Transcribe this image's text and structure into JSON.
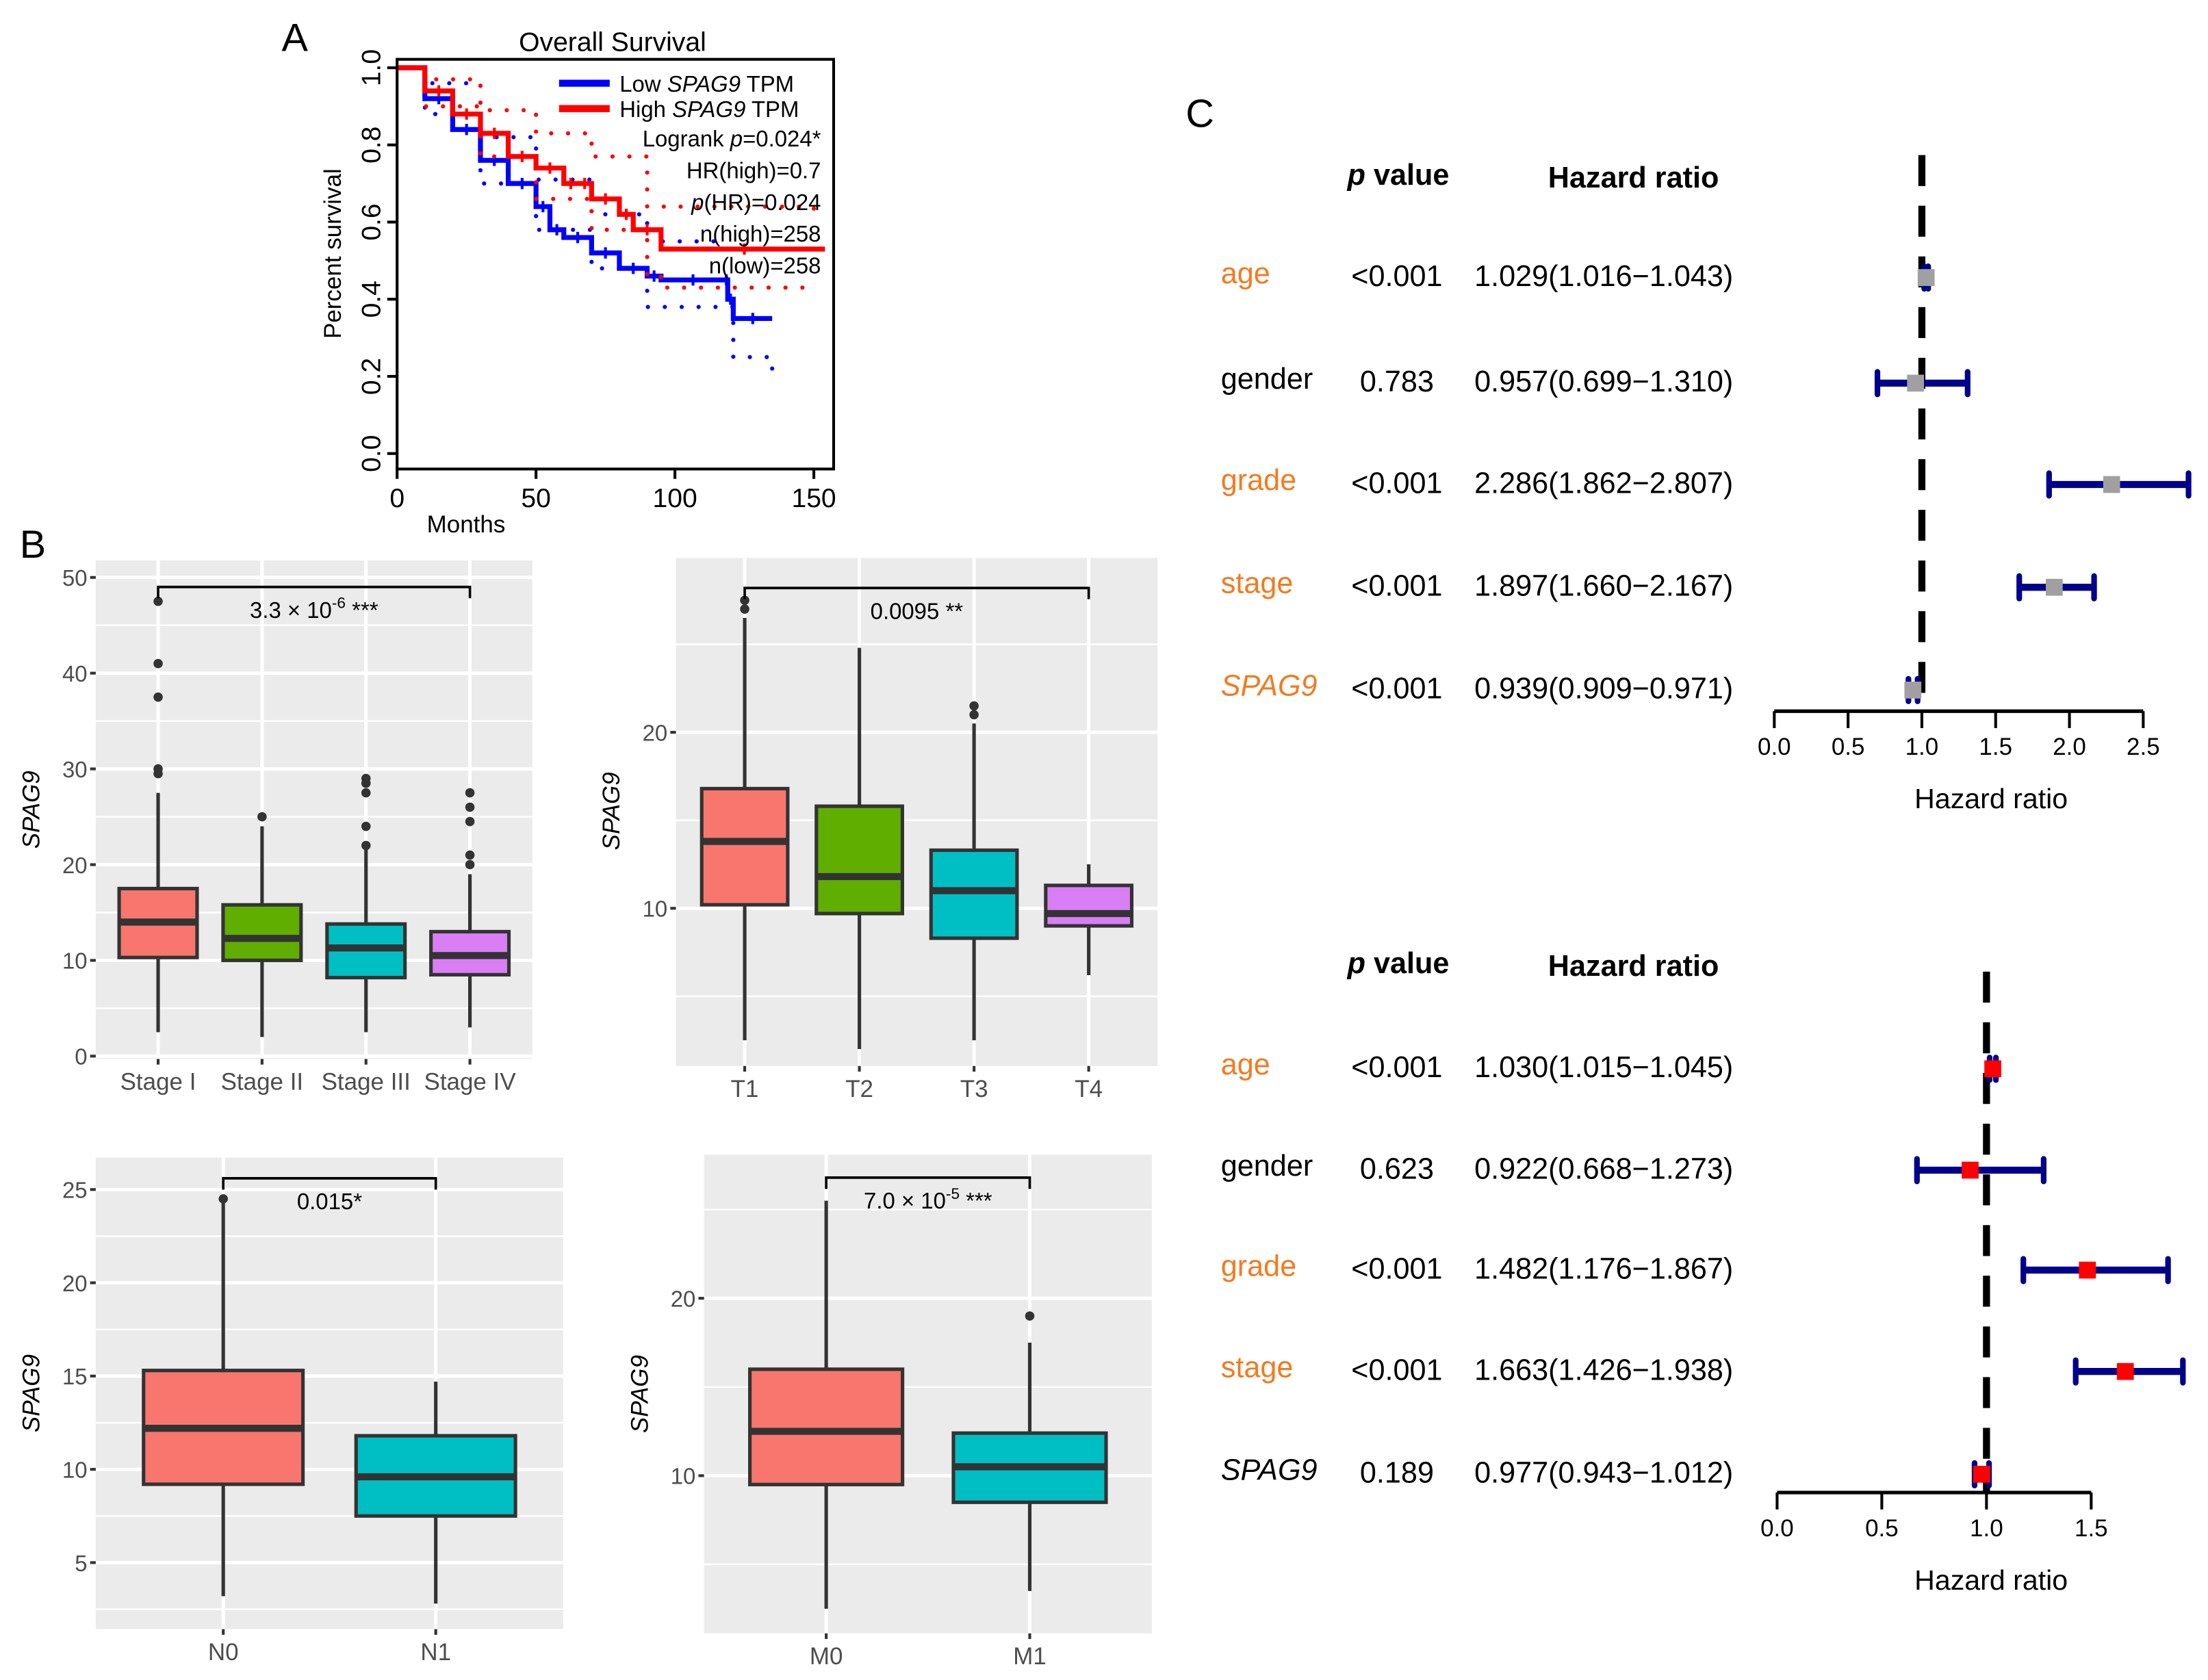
{
  "panel_labels": {
    "a": "A",
    "b": "B",
    "c": "C"
  },
  "chart_data": [
    {
      "id": "A",
      "type": "line",
      "title": "Overall Survival",
      "xlabel": "Months",
      "ylabel": "Percent survival",
      "xlim": [
        0,
        150
      ],
      "ylim": [
        0,
        1
      ],
      "xticks": [
        0,
        50,
        100,
        150
      ],
      "yticks": [
        "0.0",
        "0.2",
        "0.4",
        "0.6",
        "0.8",
        "1.0"
      ],
      "legend": {
        "placement": "top-right",
        "entries": [
          {
            "prefix": "Low ",
            "gene": "SPAG9",
            "suffix": " TPM",
            "color": "#0000ff"
          },
          {
            "prefix": "High ",
            "gene": "SPAG9",
            "suffix": " TPM",
            "color": "#ff0000"
          }
        ],
        "stats": [
          {
            "pre": "Logrank ",
            "ital": "p",
            "post": "=0.024*"
          },
          {
            "pre": "HR(high)=0.7",
            "ital": "",
            "post": ""
          },
          {
            "pre": "",
            "ital": "p",
            "post": "(HR)=0.024"
          },
          {
            "pre": "n(high)=258",
            "ital": "",
            "post": ""
          },
          {
            "pre": "n(low)=258",
            "ital": "",
            "post": ""
          }
        ]
      },
      "series": [
        {
          "name": "Low SPAG9 TPM",
          "color": "#0000ff",
          "x": [
            0,
            10,
            20,
            30,
            40,
            50,
            55,
            60,
            70,
            80,
            90,
            95,
            118,
            119,
            121,
            135
          ],
          "y": [
            1,
            0.92,
            0.84,
            0.76,
            0.7,
            0.64,
            0.58,
            0.56,
            0.52,
            0.48,
            0.46,
            0.45,
            0.45,
            0.4,
            0.35,
            0.35
          ],
          "ci_upper": {
            "x": [
              0,
              10,
              30,
              50,
              70,
              90,
              115,
              118
            ],
            "y": [
              1,
              0.96,
              0.82,
              0.71,
              0.62,
              0.55,
              0.55,
              0.55
            ]
          },
          "ci_lower": {
            "x": [
              0,
              10,
              30,
              50,
              70,
              90,
              118,
              121,
              135
            ],
            "y": [
              1,
              0.88,
              0.7,
              0.58,
              0.48,
              0.38,
              0.38,
              0.25,
              0.22
            ]
          }
        },
        {
          "name": "High SPAG9 TPM",
          "color": "#ff0000",
          "x": [
            0,
            10,
            20,
            30,
            40,
            50,
            60,
            65,
            70,
            80,
            85,
            95,
            155
          ],
          "y": [
            1,
            0.94,
            0.88,
            0.83,
            0.77,
            0.74,
            0.7,
            0.7,
            0.66,
            0.62,
            0.58,
            0.53,
            0.53
          ],
          "ci_upper": {
            "x": [
              0,
              10,
              30,
              50,
              70,
              90,
              150
            ],
            "y": [
              1,
              0.97,
              0.89,
              0.83,
              0.77,
              0.64,
              0.63
            ]
          },
          "ci_lower": {
            "x": [
              0,
              10,
              30,
              50,
              70,
              90,
              95,
              150
            ],
            "y": [
              1,
              0.9,
              0.77,
              0.66,
              0.58,
              0.46,
              0.43,
              0.43
            ]
          }
        }
      ]
    },
    {
      "id": "B-stage",
      "type": "box",
      "ylabel": "SPAG9",
      "yticks": [
        0,
        10,
        20,
        30,
        40,
        50
      ],
      "ylim": [
        0,
        51
      ],
      "categories": [
        "Stage I",
        "Stage II",
        "Stage III",
        "Stage IV"
      ],
      "colors": [
        "#f8766d",
        "#5fae00",
        "#00bfc4",
        "#d97ef5"
      ],
      "boxes": [
        {
          "lower": 2.5,
          "q1": 10.3,
          "median": 14,
          "q3": 17.5,
          "upper": 27.5,
          "outliers": [
            29.5,
            30,
            37.5,
            41,
            47.5
          ]
        },
        {
          "lower": 2,
          "q1": 10,
          "median": 12.3,
          "q3": 15.8,
          "upper": 24,
          "outliers": [
            25
          ]
        },
        {
          "lower": 2.5,
          "q1": 8.2,
          "median": 11.3,
          "q3": 13.8,
          "upper": 22,
          "outliers": [
            22,
            24,
            27.5,
            28.5,
            29
          ]
        },
        {
          "lower": 3,
          "q1": 8.5,
          "median": 10.5,
          "q3": 13,
          "upper": 19,
          "outliers": [
            20,
            21,
            24.5,
            26,
            27.5
          ]
        }
      ],
      "bracket": {
        "from": 0,
        "to": 3,
        "y": 49,
        "base": "3.3 × 10",
        "exp": "-6",
        "suffix": " ***"
      }
    },
    {
      "id": "B-T",
      "type": "box",
      "ylabel": "SPAG9",
      "yticks": [
        10,
        20
      ],
      "ylim": [
        1,
        30
      ],
      "categories": [
        "T1",
        "T2",
        "T3",
        "T4"
      ],
      "colors": [
        "#f8766d",
        "#5fae00",
        "#00bfc4",
        "#d97ef5"
      ],
      "boxes": [
        {
          "lower": 2.5,
          "q1": 10.2,
          "median": 13.8,
          "q3": 16.8,
          "upper": 26.5,
          "outliers": [
            27,
            27.5
          ]
        },
        {
          "lower": 2,
          "q1": 9.7,
          "median": 11.8,
          "q3": 15.8,
          "upper": 24.8,
          "outliers": []
        },
        {
          "lower": 2.5,
          "q1": 8.3,
          "median": 11,
          "q3": 13.3,
          "upper": 20.5,
          "outliers": [
            21,
            21.5
          ]
        },
        {
          "lower": 6.2,
          "q1": 9,
          "median": 9.7,
          "q3": 11.3,
          "upper": 12.5,
          "outliers": []
        }
      ],
      "bracket": {
        "from": 0,
        "to": 3,
        "y": 28.2,
        "base": "0.0095",
        "exp": "",
        "suffix": " **"
      }
    },
    {
      "id": "B-N",
      "type": "box",
      "ylabel": "SPAG9",
      "yticks": [
        5,
        10,
        15,
        20,
        25
      ],
      "ylim": [
        1.5,
        26.5
      ],
      "categories": [
        "N0",
        "N1"
      ],
      "colors": [
        "#f8766d",
        "#00bfc4"
      ],
      "boxes": [
        {
          "lower": 3.2,
          "q1": 9.2,
          "median": 12.2,
          "q3": 15.3,
          "upper": 24.5,
          "outliers": [
            24.5
          ]
        },
        {
          "lower": 2.8,
          "q1": 7.5,
          "median": 9.6,
          "q3": 11.8,
          "upper": 14.7,
          "outliers": []
        }
      ],
      "bracket": {
        "from": 0,
        "to": 1,
        "y": 25.6,
        "base": "0.015*",
        "exp": "",
        "suffix": ""
      }
    },
    {
      "id": "B-M",
      "type": "box",
      "ylabel": "SPAG9",
      "yticks": [
        10,
        20
      ],
      "ylim": [
        1,
        28
      ],
      "categories": [
        "M0",
        "M1"
      ],
      "colors": [
        "#f8766d",
        "#00bfc4"
      ],
      "boxes": [
        {
          "lower": 2.5,
          "q1": 9.5,
          "median": 12.5,
          "q3": 16,
          "upper": 25.5,
          "outliers": []
        },
        {
          "lower": 3.5,
          "q1": 8.5,
          "median": 10.5,
          "q3": 12.4,
          "upper": 17.5,
          "outliers": [
            19
          ]
        }
      ],
      "bracket": {
        "from": 0,
        "to": 1,
        "y": 26.8,
        "base": "7.0 × 10",
        "exp": "-5",
        "suffix": " ***"
      }
    },
    {
      "id": "C-uni",
      "type": "forest",
      "header_p_ital": "p",
      "header_p_rest": " value",
      "header_hr": "Hazard ratio",
      "xlabel": "Hazard ratio",
      "xticks": [
        "0.0",
        "0.5",
        "1.0",
        "1.5",
        "2.0",
        "2.5"
      ],
      "point_color": "#a0a0a0",
      "ci_color": "#00008b",
      "sig_color": "#f47a20",
      "rows": [
        {
          "name": "age",
          "italic": false,
          "sig": true,
          "p": "<0.001",
          "text": "1.029(1.016−1.043)",
          "hr": 1.029,
          "lo": 1.016,
          "hi": 1.043
        },
        {
          "name": "gender",
          "italic": false,
          "sig": false,
          "p": "0.783",
          "text": "0.957(0.699−1.310)",
          "hr": 0.957,
          "lo": 0.699,
          "hi": 1.31
        },
        {
          "name": "grade",
          "italic": false,
          "sig": true,
          "p": "<0.001",
          "text": "2.286(1.862−2.807)",
          "hr": 2.286,
          "lo": 1.862,
          "hi": 2.807
        },
        {
          "name": "stage",
          "italic": false,
          "sig": true,
          "p": "<0.001",
          "text": "1.897(1.660−2.167)",
          "hr": 1.897,
          "lo": 1.66,
          "hi": 2.167
        },
        {
          "name": "SPAG9",
          "italic": true,
          "sig": true,
          "p": "<0.001",
          "text": "0.939(0.909−0.971)",
          "hr": 0.939,
          "lo": 0.909,
          "hi": 0.971
        }
      ]
    },
    {
      "id": "C-multi",
      "type": "forest",
      "header_p_ital": "p",
      "header_p_rest": " value",
      "header_hr": "Hazard ratio",
      "xlabel": "Hazard ratio",
      "xticks": [
        "0.0",
        "0.5",
        "1.0",
        "1.5"
      ],
      "point_color": "#ff0000",
      "ci_color": "#00008b",
      "sig_color": "#f47a20",
      "rows": [
        {
          "name": "age",
          "italic": false,
          "sig": true,
          "p": "<0.001",
          "text": "1.030(1.015−1.045)",
          "hr": 1.03,
          "lo": 1.015,
          "hi": 1.045
        },
        {
          "name": "gender",
          "italic": false,
          "sig": false,
          "p": "0.623",
          "text": "0.922(0.668−1.273)",
          "hr": 0.922,
          "lo": 0.668,
          "hi": 1.273
        },
        {
          "name": "grade",
          "italic": false,
          "sig": true,
          "p": "<0.001",
          "text": "1.482(1.176−1.867)",
          "hr": 1.482,
          "lo": 1.176,
          "hi": 1.867
        },
        {
          "name": "stage",
          "italic": false,
          "sig": true,
          "p": "<0.001",
          "text": "1.663(1.426−1.938)",
          "hr": 1.663,
          "lo": 1.426,
          "hi": 1.938
        },
        {
          "name": "SPAG9",
          "italic": true,
          "sig": false,
          "p": "0.189",
          "text": "0.977(0.943−1.012)",
          "hr": 0.977,
          "lo": 0.943,
          "hi": 1.012
        }
      ]
    }
  ]
}
